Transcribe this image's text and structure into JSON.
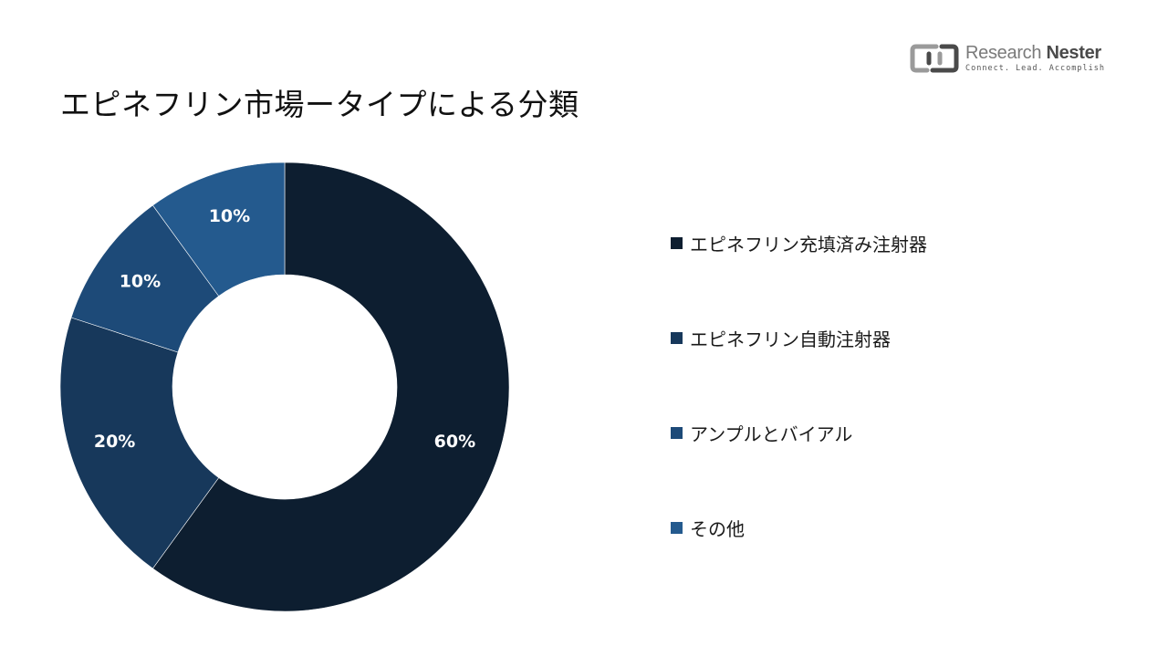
{
  "logo": {
    "name_light": "Research ",
    "name_bold": "Nester",
    "tagline": "Connect. Lead. Accomplish",
    "color_primary": "#4a4a4a",
    "color_secondary": "#9a9a9a"
  },
  "chart_data": {
    "type": "pie",
    "variant": "donut",
    "title": "エピネフリン市場ータイプによる分類",
    "legend_position": "right",
    "series": [
      {
        "name": "エピネフリン充填済み注射器",
        "value": 60,
        "label": "60%",
        "color": "#0d1e30"
      },
      {
        "name": "エピネフリン自動注射器",
        "value": 20,
        "label": "20%",
        "color": "#17385b"
      },
      {
        "name": "アンプルとバイアル",
        "value": 10,
        "label": "10%",
        "color": "#1d4a78"
      },
      {
        "name": "その他",
        "value": 10,
        "label": "10%",
        "color": "#245a8e"
      }
    ]
  }
}
